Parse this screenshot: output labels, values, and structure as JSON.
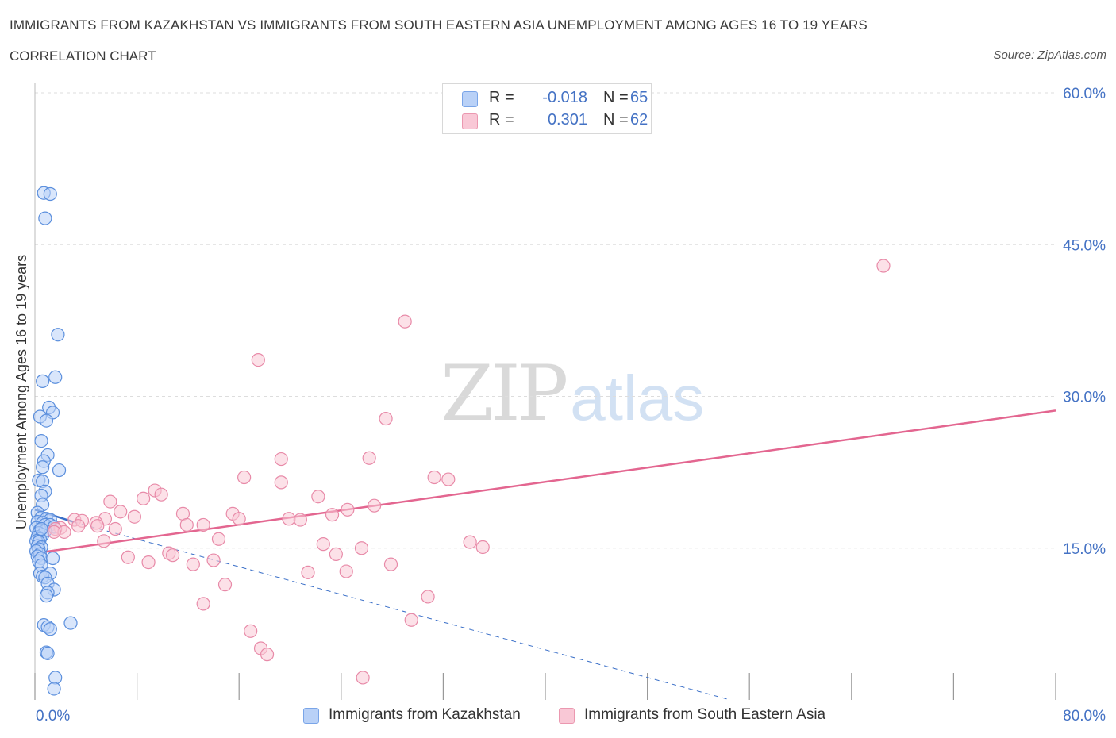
{
  "header": {
    "title": "IMMIGRANTS FROM KAZAKHSTAN VS IMMIGRANTS FROM SOUTH EASTERN ASIA UNEMPLOYMENT AMONG AGES 16 TO 19 YEARS",
    "subtitle": "CORRELATION CHART",
    "source": "Source: ZipAtlas.com"
  },
  "watermark": {
    "zip": "ZIP",
    "atlas": "atlas"
  },
  "colors": {
    "blue_fill": "#b9d1f7",
    "blue_stroke": "#5b8fdd",
    "blue_line": "#3a6fc8",
    "pink_fill": "#f9c8d6",
    "pink_stroke": "#e88aa8",
    "pink_line": "#e36690",
    "axis_text": "#4472c4",
    "grid": "#dddddd"
  },
  "legend": {
    "series": [
      {
        "r_label": "R =",
        "r_value": "-0.018",
        "n_label": "N =",
        "n_value": "65"
      },
      {
        "r_label": "R =",
        "r_value": "0.301",
        "n_label": "N =",
        "n_value": "62"
      }
    ],
    "bottom": [
      "Immigrants from Kazakhstan",
      "Immigrants from South Eastern Asia"
    ]
  },
  "chart_data": {
    "type": "scatter",
    "title": "IMMIGRANTS FROM KAZAKHSTAN VS IMMIGRANTS FROM SOUTH EASTERN ASIA UNEMPLOYMENT AMONG AGES 16 TO 19 YEARS",
    "xlabel": "",
    "ylabel": "Unemployment Among Ages 16 to 19 years",
    "xlim": [
      0,
      80
    ],
    "ylim": [
      0,
      60
    ],
    "x_tick_labels": [
      "0.0%",
      "80.0%"
    ],
    "y_ticks": [
      15,
      30,
      45,
      60
    ],
    "y_tick_labels": [
      "15.0%",
      "30.0%",
      "45.0%",
      "60.0%"
    ],
    "grid": true,
    "series": [
      {
        "name": "Immigrants from Kazakhstan",
        "color": "#b9d1f7",
        "trend": {
          "x": [
            0,
            3
          ],
          "y": [
            18.8,
            17.6
          ],
          "extended_x": [
            3,
            54.5
          ],
          "extended_y": [
            17.6,
            0
          ]
        },
        "points": [
          {
            "x": 0.7,
            "y": 50.1
          },
          {
            "x": 1.2,
            "y": 50.0
          },
          {
            "x": 0.8,
            "y": 47.6
          },
          {
            "x": 1.8,
            "y": 36.1
          },
          {
            "x": 1.6,
            "y": 31.9
          },
          {
            "x": 0.6,
            "y": 31.5
          },
          {
            "x": 1.1,
            "y": 28.9
          },
          {
            "x": 1.4,
            "y": 28.4
          },
          {
            "x": 0.4,
            "y": 28.0
          },
          {
            "x": 0.9,
            "y": 27.6
          },
          {
            "x": 0.5,
            "y": 25.6
          },
          {
            "x": 1.0,
            "y": 24.2
          },
          {
            "x": 0.7,
            "y": 23.6
          },
          {
            "x": 0.6,
            "y": 23.0
          },
          {
            "x": 1.9,
            "y": 22.7
          },
          {
            "x": 0.3,
            "y": 21.7
          },
          {
            "x": 0.6,
            "y": 21.6
          },
          {
            "x": 0.8,
            "y": 20.6
          },
          {
            "x": 0.5,
            "y": 20.2
          },
          {
            "x": 0.6,
            "y": 19.3
          },
          {
            "x": 0.2,
            "y": 18.5
          },
          {
            "x": 0.5,
            "y": 18.0
          },
          {
            "x": 0.9,
            "y": 17.9
          },
          {
            "x": 1.2,
            "y": 17.8
          },
          {
            "x": 0.2,
            "y": 17.6
          },
          {
            "x": 0.6,
            "y": 17.5
          },
          {
            "x": 0.8,
            "y": 17.3
          },
          {
            "x": 1.2,
            "y": 17.3
          },
          {
            "x": 1.5,
            "y": 17.1
          },
          {
            "x": 0.1,
            "y": 17.0
          },
          {
            "x": 0.4,
            "y": 16.8
          },
          {
            "x": 0.8,
            "y": 16.7
          },
          {
            "x": 0.3,
            "y": 16.5
          },
          {
            "x": 0.6,
            "y": 16.3
          },
          {
            "x": 0.2,
            "y": 16.1
          },
          {
            "x": 0.4,
            "y": 15.9
          },
          {
            "x": 0.1,
            "y": 15.7
          },
          {
            "x": 0.3,
            "y": 15.6
          },
          {
            "x": 0.2,
            "y": 15.2
          },
          {
            "x": 0.5,
            "y": 15.1
          },
          {
            "x": 0.3,
            "y": 14.9
          },
          {
            "x": 0.1,
            "y": 14.7
          },
          {
            "x": 0.4,
            "y": 14.4
          },
          {
            "x": 0.2,
            "y": 14.2
          },
          {
            "x": 0.5,
            "y": 14.0
          },
          {
            "x": 1.4,
            "y": 14.0
          },
          {
            "x": 0.3,
            "y": 13.7
          },
          {
            "x": 0.5,
            "y": 13.3
          },
          {
            "x": 0.4,
            "y": 12.5
          },
          {
            "x": 1.2,
            "y": 12.5
          },
          {
            "x": 0.6,
            "y": 12.2
          },
          {
            "x": 0.8,
            "y": 12.1
          },
          {
            "x": 1.0,
            "y": 11.5
          },
          {
            "x": 1.5,
            "y": 10.9
          },
          {
            "x": 1.0,
            "y": 10.6
          },
          {
            "x": 0.9,
            "y": 10.3
          },
          {
            "x": 2.8,
            "y": 7.6
          },
          {
            "x": 0.7,
            "y": 7.4
          },
          {
            "x": 1.0,
            "y": 7.2
          },
          {
            "x": 1.2,
            "y": 7.0
          },
          {
            "x": 0.9,
            "y": 4.7
          },
          {
            "x": 1.0,
            "y": 4.6
          },
          {
            "x": 1.6,
            "y": 2.2
          },
          {
            "x": 1.5,
            "y": 1.1
          },
          {
            "x": 0.5,
            "y": 16.9
          }
        ]
      },
      {
        "name": "Immigrants from South Eastern Asia",
        "color": "#f9c8d6",
        "trend": {
          "x": [
            0,
            80
          ],
          "y": [
            14.5,
            28.6
          ]
        },
        "points": [
          {
            "x": 66.5,
            "y": 42.9
          },
          {
            "x": 29.0,
            "y": 37.4
          },
          {
            "x": 17.5,
            "y": 33.6
          },
          {
            "x": 27.5,
            "y": 27.8
          },
          {
            "x": 19.3,
            "y": 23.8
          },
          {
            "x": 26.2,
            "y": 23.9
          },
          {
            "x": 31.3,
            "y": 22.0
          },
          {
            "x": 32.4,
            "y": 21.8
          },
          {
            "x": 16.4,
            "y": 22.0
          },
          {
            "x": 19.3,
            "y": 21.5
          },
          {
            "x": 9.4,
            "y": 20.7
          },
          {
            "x": 9.9,
            "y": 20.3
          },
          {
            "x": 22.2,
            "y": 20.1
          },
          {
            "x": 8.5,
            "y": 19.9
          },
          {
            "x": 5.9,
            "y": 19.6
          },
          {
            "x": 26.6,
            "y": 19.2
          },
          {
            "x": 6.7,
            "y": 18.6
          },
          {
            "x": 15.5,
            "y": 18.4
          },
          {
            "x": 24.5,
            "y": 18.8
          },
          {
            "x": 11.6,
            "y": 18.4
          },
          {
            "x": 7.8,
            "y": 18.1
          },
          {
            "x": 16.0,
            "y": 17.9
          },
          {
            "x": 23.3,
            "y": 18.3
          },
          {
            "x": 19.9,
            "y": 17.9
          },
          {
            "x": 20.8,
            "y": 17.8
          },
          {
            "x": 3.1,
            "y": 17.8
          },
          {
            "x": 5.5,
            "y": 17.9
          },
          {
            "x": 3.7,
            "y": 17.7
          },
          {
            "x": 4.8,
            "y": 17.5
          },
          {
            "x": 11.9,
            "y": 17.3
          },
          {
            "x": 13.2,
            "y": 17.3
          },
          {
            "x": 3.4,
            "y": 17.2
          },
          {
            "x": 4.9,
            "y": 17.2
          },
          {
            "x": 2.0,
            "y": 17.0
          },
          {
            "x": 1.6,
            "y": 16.9
          },
          {
            "x": 6.3,
            "y": 16.9
          },
          {
            "x": 2.3,
            "y": 16.6
          },
          {
            "x": 1.5,
            "y": 16.6
          },
          {
            "x": 14.4,
            "y": 15.9
          },
          {
            "x": 5.4,
            "y": 15.7
          },
          {
            "x": 34.1,
            "y": 15.6
          },
          {
            "x": 22.6,
            "y": 15.4
          },
          {
            "x": 35.1,
            "y": 15.1
          },
          {
            "x": 25.6,
            "y": 15.0
          },
          {
            "x": 10.5,
            "y": 14.5
          },
          {
            "x": 23.6,
            "y": 14.4
          },
          {
            "x": 10.8,
            "y": 14.3
          },
          {
            "x": 7.3,
            "y": 14.1
          },
          {
            "x": 14.0,
            "y": 13.8
          },
          {
            "x": 8.9,
            "y": 13.6
          },
          {
            "x": 12.4,
            "y": 13.4
          },
          {
            "x": 27.9,
            "y": 13.4
          },
          {
            "x": 21.4,
            "y": 12.6
          },
          {
            "x": 24.4,
            "y": 12.7
          },
          {
            "x": 14.9,
            "y": 11.4
          },
          {
            "x": 30.8,
            "y": 10.2
          },
          {
            "x": 13.2,
            "y": 9.5
          },
          {
            "x": 29.5,
            "y": 7.9
          },
          {
            "x": 16.9,
            "y": 6.8
          },
          {
            "x": 17.7,
            "y": 5.1
          },
          {
            "x": 18.2,
            "y": 4.5
          },
          {
            "x": 25.7,
            "y": 2.2
          }
        ]
      }
    ]
  }
}
